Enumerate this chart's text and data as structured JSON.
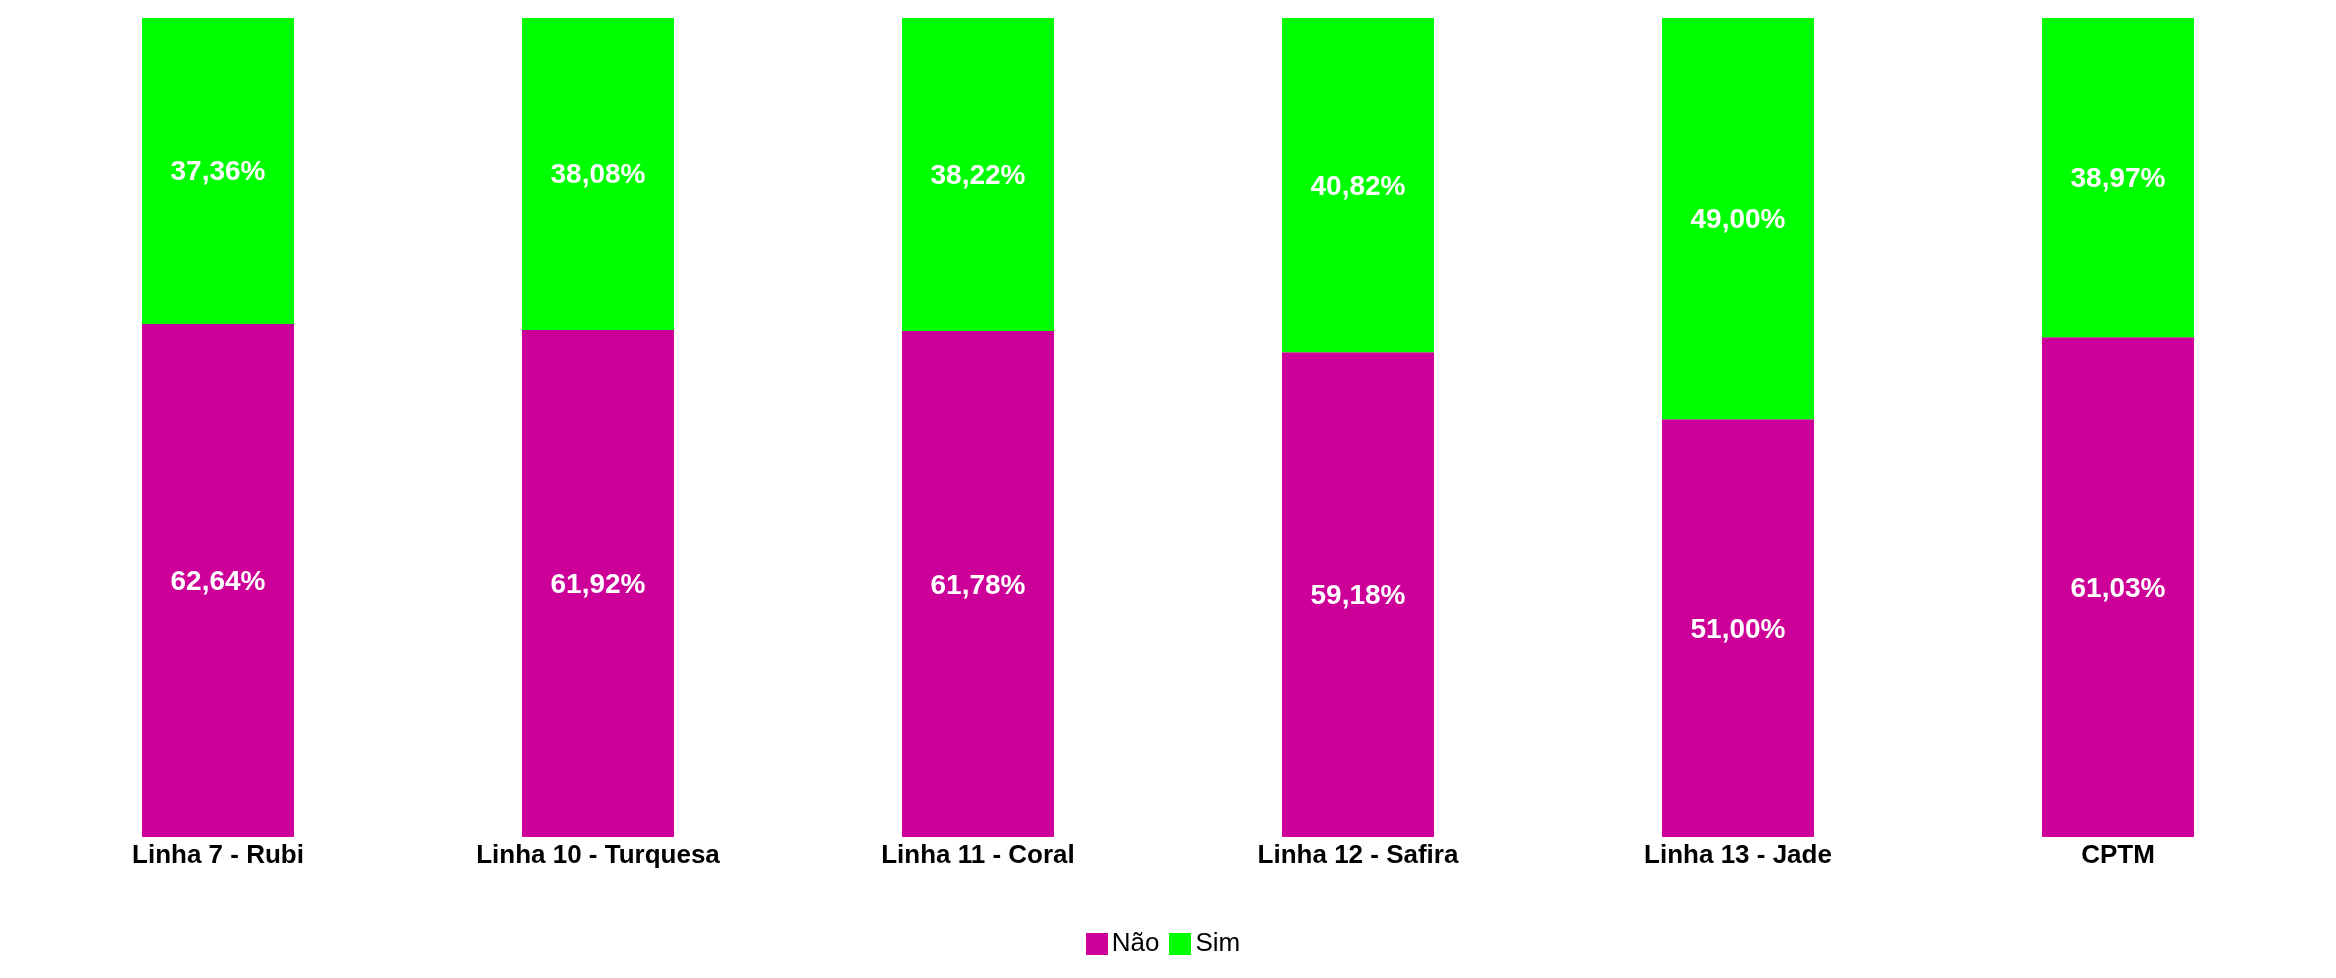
{
  "chart_data": {
    "type": "bar",
    "stacked": true,
    "categories": [
      "Linha 7 - Rubi",
      "Linha 10 - Turquesa",
      "Linha 11 - Coral",
      "Linha 12 - Safira",
      "Linha 13 - Jade",
      "CPTM"
    ],
    "series": [
      {
        "name": "Não",
        "color": "#cc0099",
        "values": [
          62.64,
          61.92,
          61.78,
          59.18,
          51.0,
          61.03
        ],
        "value_labels": [
          "62,64%",
          "61,92%",
          "61,78%",
          "59,18%",
          "51,00%",
          "61,03%"
        ]
      },
      {
        "name": "Sim",
        "color": "#00ff00",
        "values": [
          37.36,
          38.08,
          38.22,
          40.82,
          49.0,
          38.97
        ],
        "value_labels": [
          "37,36%",
          "38,08%",
          "38,22%",
          "40,82%",
          "49,00%",
          "38,97%"
        ]
      }
    ],
    "legend": "bottom"
  }
}
